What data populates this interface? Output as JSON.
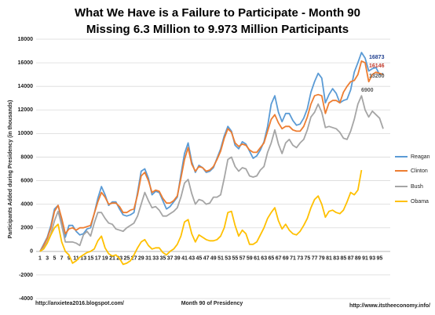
{
  "chart_data": {
    "type": "line",
    "title": [
      "What We Have is a Failure to Participate - Month 90",
      "Missing 6.3 Million to 9.973 Million Participants"
    ],
    "y_label": "Participants Added during Presidency (in thousands)",
    "x_label": "Month 90 of Presidency",
    "footer": [
      "http://anxietea2016.blogspot.com/",
      "http://www.itstheeconomy.info/"
    ],
    "annotations": [
      "16873",
      "16146",
      "13200",
      "6900"
    ],
    "categories": [
      "1",
      null,
      "3",
      null,
      "5",
      null,
      "7",
      null,
      "9",
      null,
      "11",
      null,
      "13",
      null,
      "15",
      null,
      "17",
      null,
      "19",
      null,
      "21",
      null,
      "23",
      null,
      "25",
      null,
      "27",
      null,
      "29",
      null,
      "31",
      null,
      "33",
      null,
      "35",
      null,
      "37",
      null,
      "39",
      null,
      "41",
      null,
      "43",
      null,
      "45",
      null,
      "47",
      null,
      "49",
      null,
      "51",
      null,
      "53",
      null,
      "55",
      null,
      "57",
      null,
      "59",
      null,
      "61",
      null,
      "63",
      null,
      "65",
      null,
      "67",
      null,
      "69",
      null,
      "71",
      null,
      "73",
      null,
      "75",
      null,
      "77",
      null,
      "79",
      null,
      "81",
      null,
      "83",
      null,
      "85",
      null,
      "87",
      null,
      "89",
      null,
      "91",
      null,
      "93",
      null,
      "95",
      null
    ],
    "ylim": [
      -4000,
      18000
    ],
    "yticks": [
      -4000,
      -2000,
      0,
      2000,
      4000,
      6000,
      8000,
      10000,
      12000,
      14000,
      16000,
      18000
    ],
    "grid": true,
    "legend": "right",
    "series": [
      {
        "name": "Reagan",
        "color": "#5b9bd5",
        "values": [
          0,
          600,
          1200,
          2200,
          3600,
          3900,
          2600,
          1200,
          2200,
          2200,
          1700,
          1400,
          1500,
          1900,
          2000,
          3200,
          4500,
          5500,
          4800,
          3900,
          4200,
          4200,
          3600,
          3100,
          3000,
          3100,
          3300,
          5000,
          6800,
          7000,
          6200,
          4800,
          5100,
          5000,
          4300,
          3600,
          3800,
          4200,
          4600,
          6500,
          8300,
          9200,
          7600,
          6700,
          7300,
          7100,
          6700,
          6800,
          7100,
          7900,
          8700,
          9800,
          10600,
          10200,
          9000,
          8700,
          9300,
          9100,
          8500,
          7900,
          8100,
          8600,
          9300,
          10600,
          12500,
          13200,
          11800,
          11000,
          11700,
          11700,
          11100,
          10700,
          10800,
          11300,
          12100,
          13500,
          14400,
          15100,
          14700,
          12600,
          13300,
          13800,
          13400,
          12600,
          12800,
          12900,
          13700,
          15200,
          16000,
          16873,
          16400,
          15300,
          15500,
          15600,
          15000,
          15100
        ]
      },
      {
        "name": "Clinton",
        "color": "#ed7d31",
        "values": [
          0,
          500,
          1100,
          2000,
          3400,
          3900,
          2800,
          1500,
          1900,
          2000,
          1800,
          2000,
          2000,
          2100,
          2200,
          3200,
          4200,
          5000,
          4600,
          4000,
          4100,
          4100,
          3800,
          3300,
          3300,
          3500,
          3600,
          4800,
          6400,
          6700,
          6000,
          5000,
          5200,
          5100,
          4500,
          4100,
          4100,
          4300,
          4700,
          6200,
          7800,
          8800,
          7400,
          6800,
          7200,
          7100,
          6800,
          6900,
          7200,
          7800,
          8500,
          9600,
          10400,
          10100,
          9200,
          8900,
          9100,
          9000,
          8600,
          8400,
          8400,
          8800,
          9200,
          10200,
          11200,
          11600,
          10900,
          10400,
          10600,
          10600,
          10300,
          10200,
          10200,
          10600,
          11400,
          12500,
          13200,
          13300,
          13200,
          11700,
          12600,
          12800,
          12800,
          12600,
          13500,
          14000,
          14400,
          14500,
          15000,
          16146,
          16000,
          14400,
          15000,
          15200,
          15100,
          15000
        ]
      },
      {
        "name": "Bush",
        "color": "#a5a5a5",
        "values": [
          0,
          300,
          800,
          1500,
          2600,
          3400,
          2200,
          800,
          800,
          800,
          700,
          500,
          1400,
          1700,
          1300,
          2400,
          3300,
          3300,
          2800,
          2400,
          2300,
          1900,
          1800,
          1700,
          2000,
          2200,
          2400,
          3000,
          4000,
          5000,
          4300,
          3700,
          3800,
          3500,
          3000,
          3000,
          3200,
          3400,
          3700,
          4600,
          5800,
          6100,
          4900,
          4000,
          4400,
          4300,
          4000,
          4100,
          4600,
          4600,
          4800,
          6200,
          7800,
          8000,
          7200,
          6800,
          7100,
          7000,
          6400,
          6300,
          6400,
          6900,
          7200,
          8400,
          9200,
          10300,
          9100,
          8300,
          9200,
          9500,
          9000,
          8800,
          9200,
          9500,
          10300,
          11400,
          11800,
          12500,
          11800,
          10500,
          10600,
          10500,
          10400,
          10100,
          9600,
          9500,
          10200,
          11200,
          12500,
          13200,
          12000,
          11400,
          11900,
          11600,
          11300,
          10400
        ]
      },
      {
        "name": "Obama",
        "color": "#ffc000",
        "values": [
          0,
          200,
          700,
          1400,
          2000,
          2300,
          800,
          0,
          -300,
          -1000,
          -800,
          -500,
          -300,
          -100,
          0,
          200,
          900,
          1300,
          300,
          -200,
          -400,
          -300,
          -600,
          -1100,
          -1000,
          -800,
          -300,
          300,
          800,
          1000,
          500,
          200,
          300,
          300,
          -100,
          -300,
          0,
          200,
          600,
          1300,
          2500,
          2700,
          1500,
          800,
          1400,
          1200,
          1000,
          900,
          900,
          1000,
          1300,
          2000,
          3300,
          3400,
          2200,
          1300,
          1800,
          1500,
          600,
          600,
          800,
          1400,
          2000,
          2800,
          3300,
          3700,
          2600,
          1900,
          2300,
          1800,
          1500,
          1400,
          1700,
          2200,
          2800,
          3700,
          4400,
          4700,
          4000,
          2900,
          3400,
          3500,
          3300,
          3200,
          3500,
          4200,
          5000,
          4800,
          5200,
          6900,
          null,
          null,
          null,
          null,
          null,
          null
        ]
      }
    ]
  }
}
